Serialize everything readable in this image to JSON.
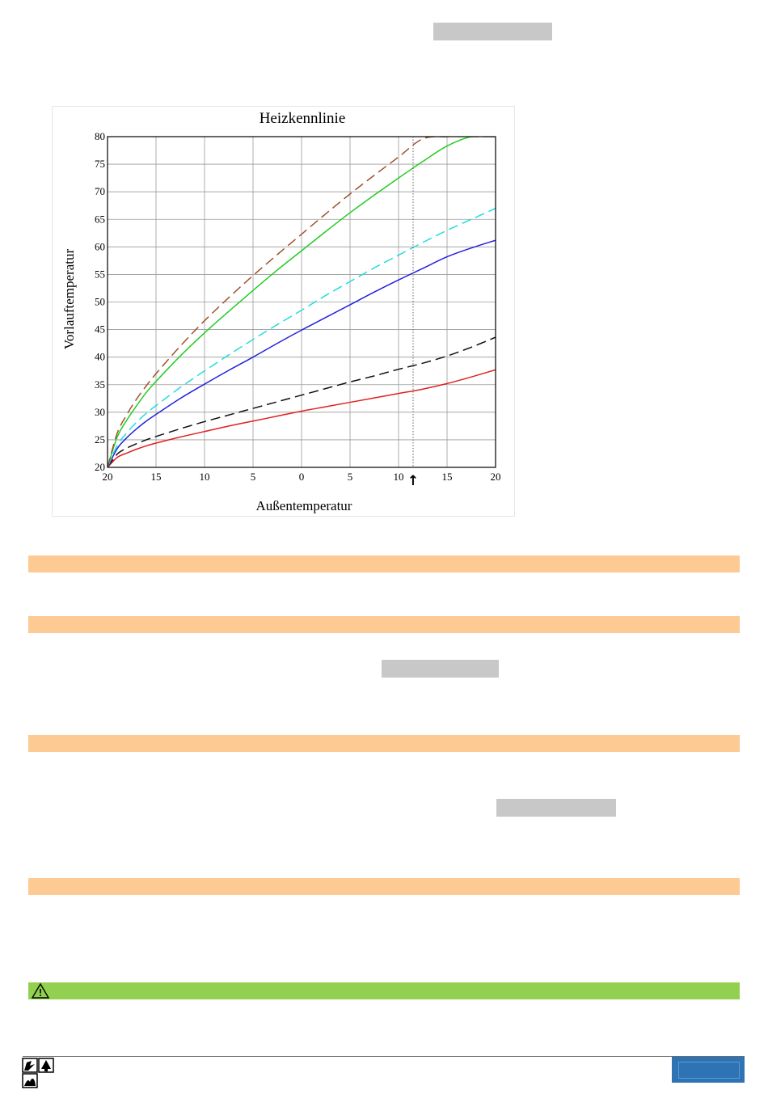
{
  "chart_data": {
    "type": "line",
    "title": "Heizkennlinie",
    "xlabel": "Außentemperatur",
    "ylabel": "Vorlauftemperatur",
    "x_tick_labels": [
      "20",
      "15",
      "10",
      "5",
      "0",
      "5",
      "10",
      "15",
      "20"
    ],
    "x_tick_values": [
      20,
      15,
      10,
      5,
      0,
      -5,
      -10,
      -15,
      -20
    ],
    "y_tick_labels": [
      "20",
      "25",
      "30",
      "35",
      "40",
      "45",
      "50",
      "55",
      "60",
      "65",
      "70",
      "75",
      "80"
    ],
    "xlim": [
      20,
      -20
    ],
    "ylim": [
      20,
      80
    ],
    "grid": true,
    "marker_x": -11.5,
    "marker_symbol": "↑",
    "x": [
      20,
      19,
      18,
      17,
      16,
      15,
      12.5,
      10,
      7.5,
      5,
      2.5,
      0,
      -2.5,
      -5,
      -7.5,
      -10,
      -12.5,
      -15,
      -17.5,
      -20
    ],
    "series": [
      {
        "color": "#e02020",
        "dash": "solid",
        "values": [
          20,
          21.8,
          22.6,
          23.3,
          23.9,
          24.4,
          25.5,
          26.5,
          27.5,
          28.4,
          29.3,
          30.2,
          31.0,
          31.8,
          32.6,
          33.4,
          34.2,
          35.2,
          36.4,
          37.7
        ]
      },
      {
        "color": "#111111",
        "dash": "dashed",
        "values": [
          20,
          22.4,
          23.5,
          24.3,
          25.0,
          25.6,
          27.0,
          28.3,
          29.5,
          30.7,
          31.9,
          33.1,
          34.3,
          35.5,
          36.6,
          37.8,
          38.9,
          40.2,
          41.8,
          43.6
        ]
      },
      {
        "color": "#2222dd",
        "dash": "solid",
        "values": [
          20,
          23.4,
          25.4,
          27.0,
          28.4,
          29.6,
          32.5,
          35.1,
          37.6,
          40.0,
          42.5,
          44.9,
          47.2,
          49.5,
          51.8,
          54.0,
          56.1,
          58.2,
          59.8,
          61.2
        ]
      },
      {
        "color": "#22dddd",
        "dash": "dashed",
        "values": [
          20,
          24.0,
          26.3,
          28.2,
          29.8,
          31.2,
          34.5,
          37.5,
          40.4,
          43.2,
          45.9,
          48.5,
          51.2,
          53.7,
          56.2,
          58.5,
          60.8,
          63.0,
          65.0,
          67.0
        ]
      },
      {
        "color": "#22cc22",
        "dash": "solid",
        "values": [
          20,
          25.5,
          28.6,
          31.2,
          33.6,
          35.6,
          40.2,
          44.4,
          48.3,
          52.1,
          55.8,
          59.3,
          62.8,
          66.2,
          69.4,
          72.5,
          75.5,
          78.3,
          80.0,
          80.0
        ]
      },
      {
        "color": "#a0522d",
        "dash": "dashed",
        "values": [
          20,
          26.2,
          29.6,
          32.4,
          34.8,
          37.0,
          42.0,
          46.6,
          50.8,
          54.8,
          58.6,
          62.3,
          66.0,
          69.6,
          73.0,
          76.3,
          79.6,
          80.0,
          80.0,
          80.0
        ]
      }
    ]
  },
  "warning": {
    "icon": "warning-triangle-icon"
  },
  "colors": {
    "section_bar": "#fdca93",
    "warning_bar": "#92d050",
    "footer_box": "#2e74b5"
  }
}
